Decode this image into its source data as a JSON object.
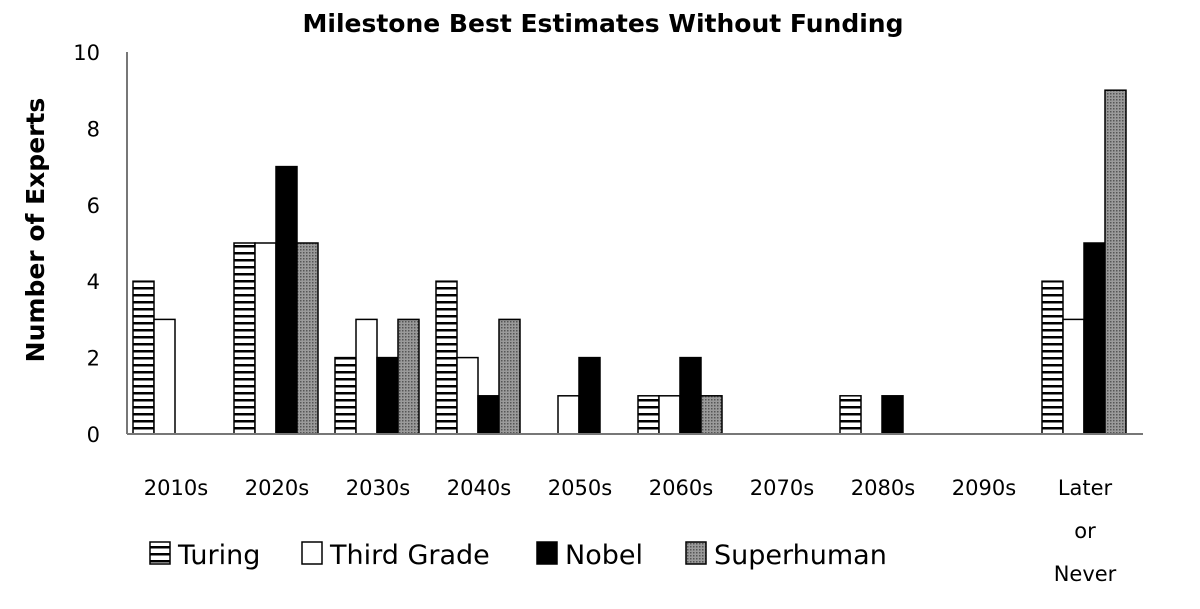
{
  "chart_data": {
    "type": "bar",
    "title": "Milestone Best Estimates Without Funding",
    "xlabel": "",
    "ylabel": "Number of Experts",
    "ylim": [
      0,
      10
    ],
    "yticks": [
      "0",
      "2",
      "4",
      "6",
      "8",
      "10"
    ],
    "grid": false,
    "legend_position": "bottom-left",
    "categories": [
      "2010s",
      "2020s",
      "2030s",
      "2040s",
      "2050s",
      "2060s",
      "2070s",
      "2080s",
      "2090s",
      "Later or Never"
    ],
    "category_lines": [
      [
        "2010s"
      ],
      [
        "2020s"
      ],
      [
        "2030s"
      ],
      [
        "2040s"
      ],
      [
        "2050s"
      ],
      [
        "2060s"
      ],
      [
        "2070s"
      ],
      [
        "2080s"
      ],
      [
        "2090s"
      ],
      [
        "Later",
        "or",
        "Never"
      ]
    ],
    "series": [
      {
        "name": "Turing",
        "pattern": "horizontal-stripes",
        "values": [
          4,
          5,
          2,
          4,
          0,
          1,
          0,
          1,
          0,
          4
        ]
      },
      {
        "name": "Third Grade",
        "pattern": "white",
        "values": [
          3,
          5,
          3,
          2,
          1,
          1,
          0,
          0,
          0,
          3
        ]
      },
      {
        "name": "Nobel",
        "pattern": "black",
        "values": [
          0,
          7,
          2,
          1,
          2,
          2,
          0,
          1,
          0,
          5
        ]
      },
      {
        "name": "Superhuman",
        "pattern": "gray-dots",
        "values": [
          0,
          5,
          3,
          3,
          0,
          1,
          0,
          0,
          0,
          9
        ]
      }
    ]
  }
}
